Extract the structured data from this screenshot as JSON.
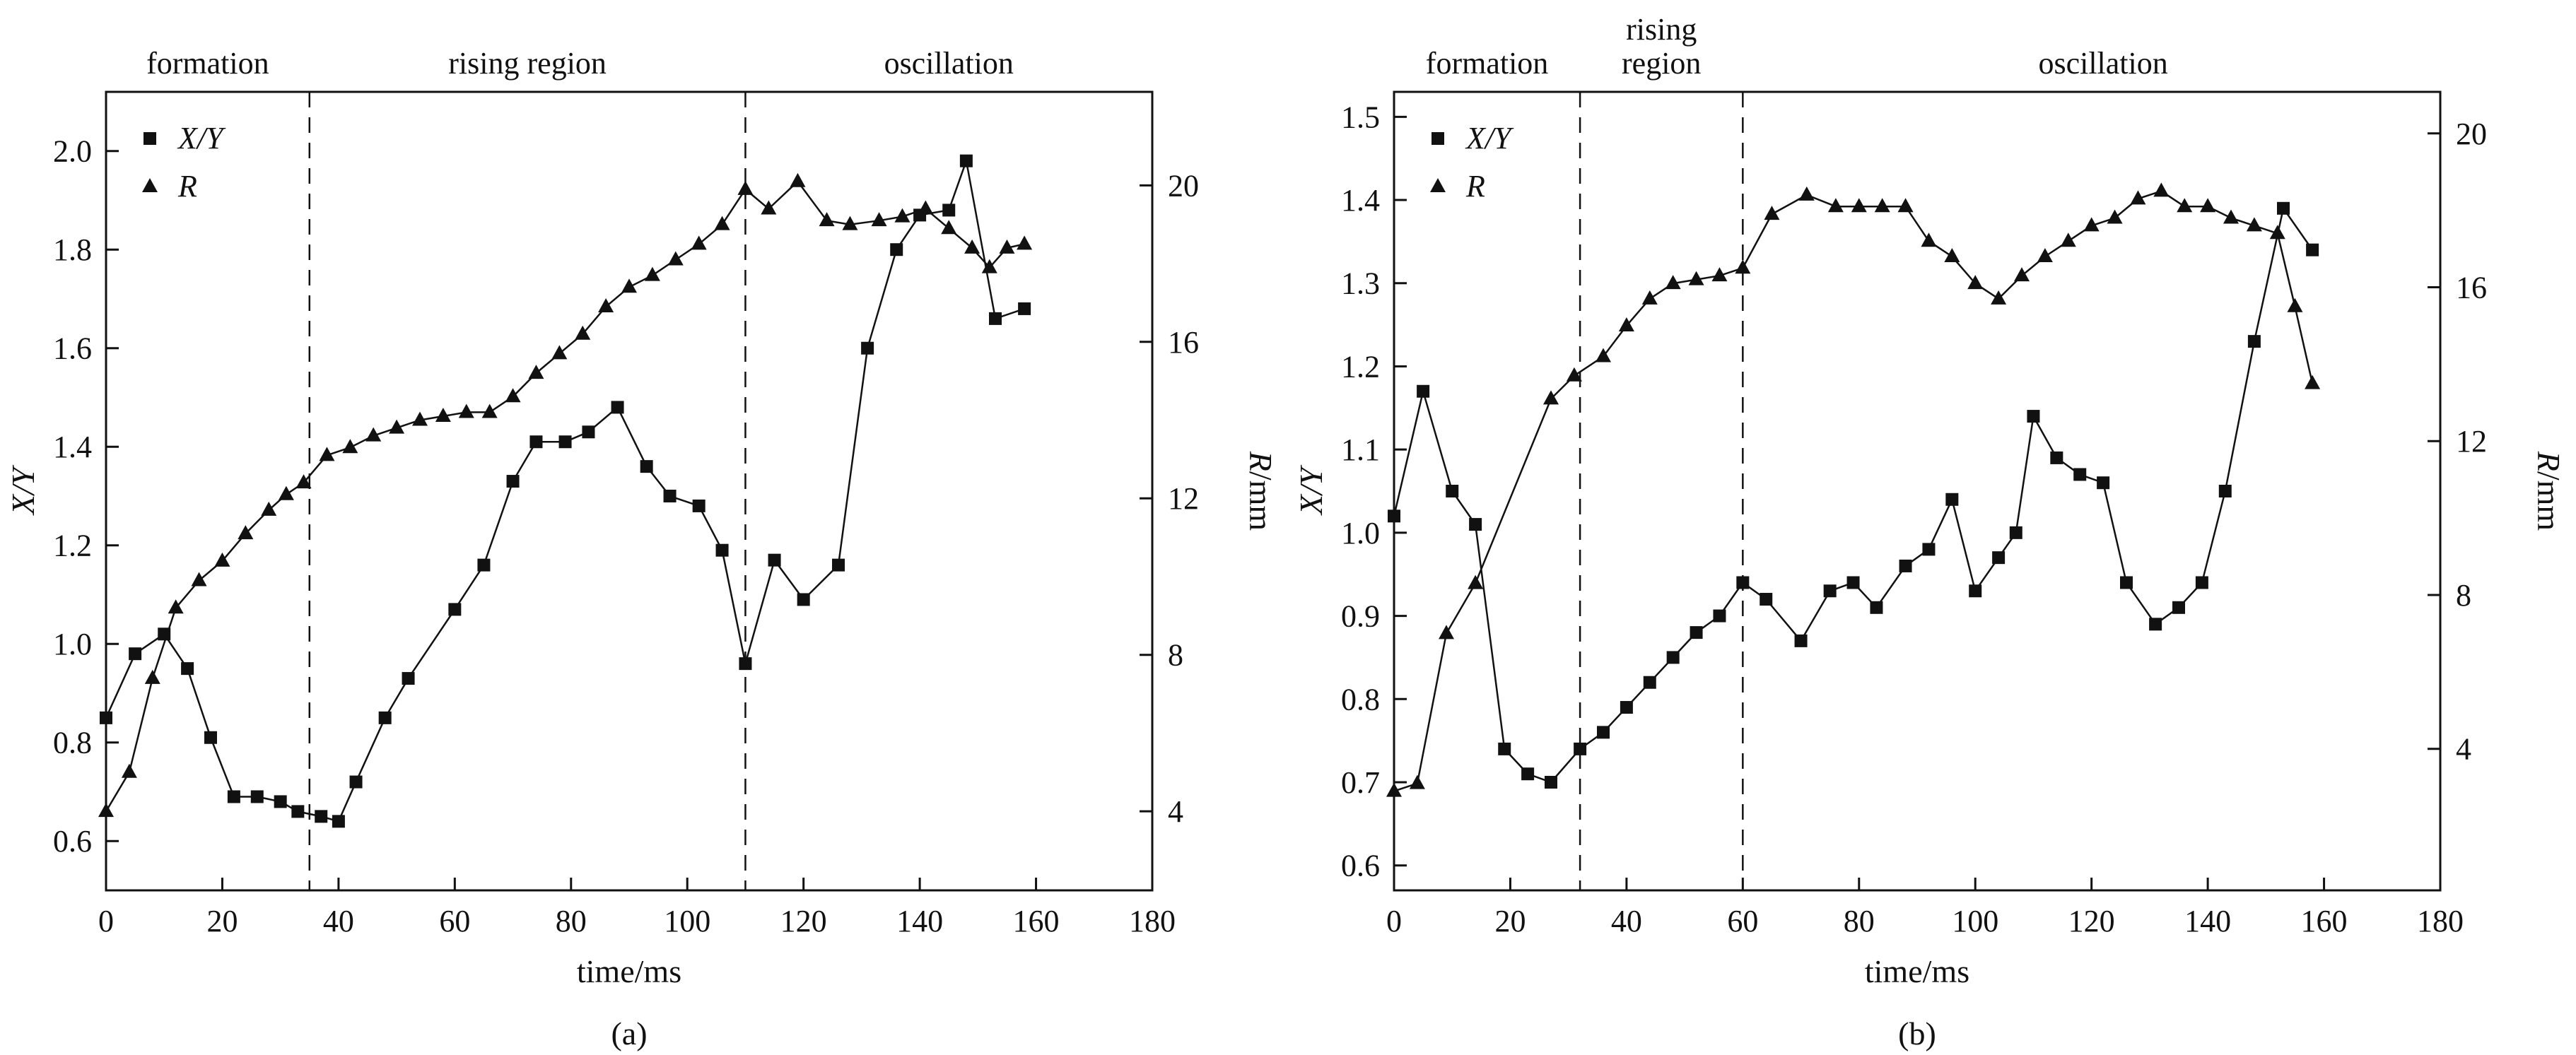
{
  "chart_data": [
    {
      "type": "line",
      "panel_label": "(a)",
      "xlabel": "time/ms",
      "ylabel_left": "X/Y",
      "ylabel_right": "R/mm",
      "ink_color": "#111111",
      "x_axis": {
        "min": 0,
        "max": 180,
        "ticks": [
          {
            "v": 0,
            "label": "0"
          },
          {
            "v": 20,
            "label": "20"
          },
          {
            "v": 40,
            "label": "40"
          },
          {
            "v": 60,
            "label": "60"
          },
          {
            "v": 80,
            "label": "80"
          },
          {
            "v": 100,
            "label": "100"
          },
          {
            "v": 120,
            "label": "120"
          },
          {
            "v": 140,
            "label": "140"
          },
          {
            "v": 160,
            "label": "160"
          },
          {
            "v": 180,
            "label": "180"
          }
        ]
      },
      "y_left": {
        "min": 0.5,
        "max": 2.12,
        "ticks": [
          {
            "v": 0.6,
            "label": "0.6"
          },
          {
            "v": 0.8,
            "label": "0.8"
          },
          {
            "v": 1.0,
            "label": "1.0"
          },
          {
            "v": 1.2,
            "label": "1.2"
          },
          {
            "v": 1.4,
            "label": "1.4"
          },
          {
            "v": 1.6,
            "label": "1.6"
          },
          {
            "v": 1.8,
            "label": "1.8"
          },
          {
            "v": 2.0,
            "label": "2.0"
          }
        ]
      },
      "y_right": {
        "min": 1.98,
        "max": 22.39,
        "ticks": [
          {
            "v": 4,
            "label": "4"
          },
          {
            "v": 8,
            "label": "8"
          },
          {
            "v": 12,
            "label": "12"
          },
          {
            "v": 16,
            "label": "16"
          },
          {
            "v": 20,
            "label": "20"
          }
        ]
      },
      "region_dividers_x": [
        35,
        110
      ],
      "regions": [
        {
          "lines": [
            "formation"
          ],
          "x_center": 17.5
        },
        {
          "lines": [
            "rising region"
          ],
          "x_center": 72.5
        },
        {
          "lines": [
            "oscillation"
          ],
          "x_center": 145
        }
      ],
      "legend": [
        {
          "marker": "square",
          "label": "X/Y"
        },
        {
          "marker": "triangle",
          "label": "R"
        }
      ],
      "series": [
        {
          "name": "X/Y",
          "marker": "square",
          "axis": "left",
          "x": [
            0,
            5,
            10,
            14,
            18,
            22,
            26,
            30,
            33,
            37,
            40,
            43,
            48,
            52,
            60,
            65,
            70,
            74,
            79,
            83,
            88,
            93,
            97,
            102,
            106,
            110,
            115,
            120,
            126,
            131,
            136,
            140,
            145,
            148,
            153,
            158
          ],
          "y": [
            0.85,
            0.98,
            1.02,
            0.95,
            0.81,
            0.69,
            0.69,
            0.68,
            0.66,
            0.65,
            0.64,
            0.72,
            0.85,
            0.93,
            1.07,
            1.16,
            1.33,
            1.41,
            1.41,
            1.43,
            1.48,
            1.36,
            1.3,
            1.28,
            1.19,
            0.96,
            1.17,
            1.09,
            1.16,
            1.6,
            1.8,
            1.87,
            1.88,
            1.98,
            1.66,
            1.68
          ]
        },
        {
          "name": "R",
          "marker": "triangle",
          "axis": "right",
          "x": [
            0,
            4,
            8,
            12,
            16,
            20,
            24,
            28,
            31,
            34,
            38,
            42,
            46,
            50,
            54,
            58,
            62,
            66,
            70,
            74,
            78,
            82,
            86,
            90,
            94,
            98,
            102,
            106,
            110,
            114,
            119,
            124,
            128,
            133,
            137,
            141,
            145,
            149,
            152,
            155,
            158
          ],
          "y": [
            4.0,
            5.0,
            7.4,
            9.2,
            9.9,
            10.4,
            11.1,
            11.7,
            12.1,
            12.4,
            13.1,
            13.3,
            13.6,
            13.8,
            14.0,
            14.1,
            14.2,
            14.2,
            14.6,
            15.2,
            15.7,
            16.2,
            16.9,
            17.4,
            17.7,
            18.1,
            18.5,
            19.0,
            19.9,
            19.4,
            20.1,
            19.1,
            19.0,
            19.1,
            19.2,
            19.4,
            18.9,
            18.4,
            17.9,
            18.4,
            18.5
          ]
        }
      ]
    },
    {
      "type": "line",
      "panel_label": "(b)",
      "xlabel": "time/ms",
      "ylabel_left": "X/Y",
      "ylabel_right": "R/mm",
      "ink_color": "#111111",
      "x_axis": {
        "min": 0,
        "max": 180,
        "ticks": [
          {
            "v": 0,
            "label": "0"
          },
          {
            "v": 20,
            "label": "20"
          },
          {
            "v": 40,
            "label": "40"
          },
          {
            "v": 60,
            "label": "60"
          },
          {
            "v": 80,
            "label": "80"
          },
          {
            "v": 100,
            "label": "100"
          },
          {
            "v": 120,
            "label": "120"
          },
          {
            "v": 140,
            "label": "140"
          },
          {
            "v": 160,
            "label": "160"
          },
          {
            "v": 180,
            "label": "180"
          }
        ]
      },
      "y_left": {
        "min": 0.57,
        "max": 1.53,
        "ticks": [
          {
            "v": 0.6,
            "label": "0.6"
          },
          {
            "v": 0.7,
            "label": "0.7"
          },
          {
            "v": 0.8,
            "label": "0.8"
          },
          {
            "v": 0.9,
            "label": "0.9"
          },
          {
            "v": 1.0,
            "label": "1.0"
          },
          {
            "v": 1.1,
            "label": "1.1"
          },
          {
            "v": 1.2,
            "label": "1.2"
          },
          {
            "v": 1.3,
            "label": "1.3"
          },
          {
            "v": 1.4,
            "label": "1.4"
          },
          {
            "v": 1.5,
            "label": "1.5"
          }
        ]
      },
      "y_right": {
        "min": 0.32,
        "max": 21.08,
        "ticks": [
          {
            "v": 4,
            "label": "4"
          },
          {
            "v": 8,
            "label": "8"
          },
          {
            "v": 12,
            "label": "12"
          },
          {
            "v": 16,
            "label": "16"
          },
          {
            "v": 20,
            "label": "20"
          }
        ]
      },
      "region_dividers_x": [
        32,
        60
      ],
      "regions": [
        {
          "lines": [
            "formation"
          ],
          "x_center": 16
        },
        {
          "lines": [
            "rising",
            "region"
          ],
          "x_center": 46
        },
        {
          "lines": [
            "oscillation"
          ],
          "x_center": 122
        }
      ],
      "legend": [
        {
          "marker": "square",
          "label": "X/Y"
        },
        {
          "marker": "triangle",
          "label": "R"
        }
      ],
      "series": [
        {
          "name": "X/Y",
          "marker": "square",
          "axis": "left",
          "x": [
            0,
            5,
            10,
            14,
            19,
            23,
            27,
            32,
            36,
            40,
            44,
            48,
            52,
            56,
            60,
            64,
            70,
            75,
            79,
            83,
            88,
            92,
            96,
            100,
            104,
            107,
            110,
            114,
            118,
            122,
            126,
            131,
            135,
            139,
            143,
            148,
            153,
            158
          ],
          "y": [
            1.02,
            1.17,
            1.05,
            1.01,
            0.74,
            0.71,
            0.7,
            0.74,
            0.76,
            0.79,
            0.82,
            0.85,
            0.88,
            0.9,
            0.94,
            0.92,
            0.87,
            0.93,
            0.94,
            0.91,
            0.96,
            0.98,
            1.04,
            0.93,
            0.97,
            1.0,
            1.14,
            1.09,
            1.07,
            1.06,
            0.94,
            0.89,
            0.91,
            0.94,
            1.05,
            1.23,
            1.39,
            1.34
          ]
        },
        {
          "name": "R",
          "marker": "triangle",
          "axis": "right",
          "x": [
            0,
            4,
            9,
            14,
            27,
            31,
            36,
            40,
            44,
            48,
            52,
            56,
            60,
            65,
            71,
            76,
            80,
            84,
            88,
            92,
            96,
            100,
            104,
            108,
            112,
            116,
            120,
            124,
            128,
            132,
            136,
            140,
            144,
            148,
            152,
            155,
            158
          ],
          "y": [
            2.9,
            3.1,
            7.0,
            8.3,
            13.1,
            13.7,
            14.2,
            15.0,
            15.7,
            16.1,
            16.2,
            16.3,
            16.5,
            17.9,
            18.4,
            18.1,
            18.1,
            18.1,
            18.1,
            17.2,
            16.8,
            16.1,
            15.7,
            16.3,
            16.8,
            17.2,
            17.6,
            17.8,
            18.3,
            18.5,
            18.1,
            18.1,
            17.8,
            17.6,
            17.4,
            15.5,
            13.5
          ]
        }
      ]
    }
  ]
}
